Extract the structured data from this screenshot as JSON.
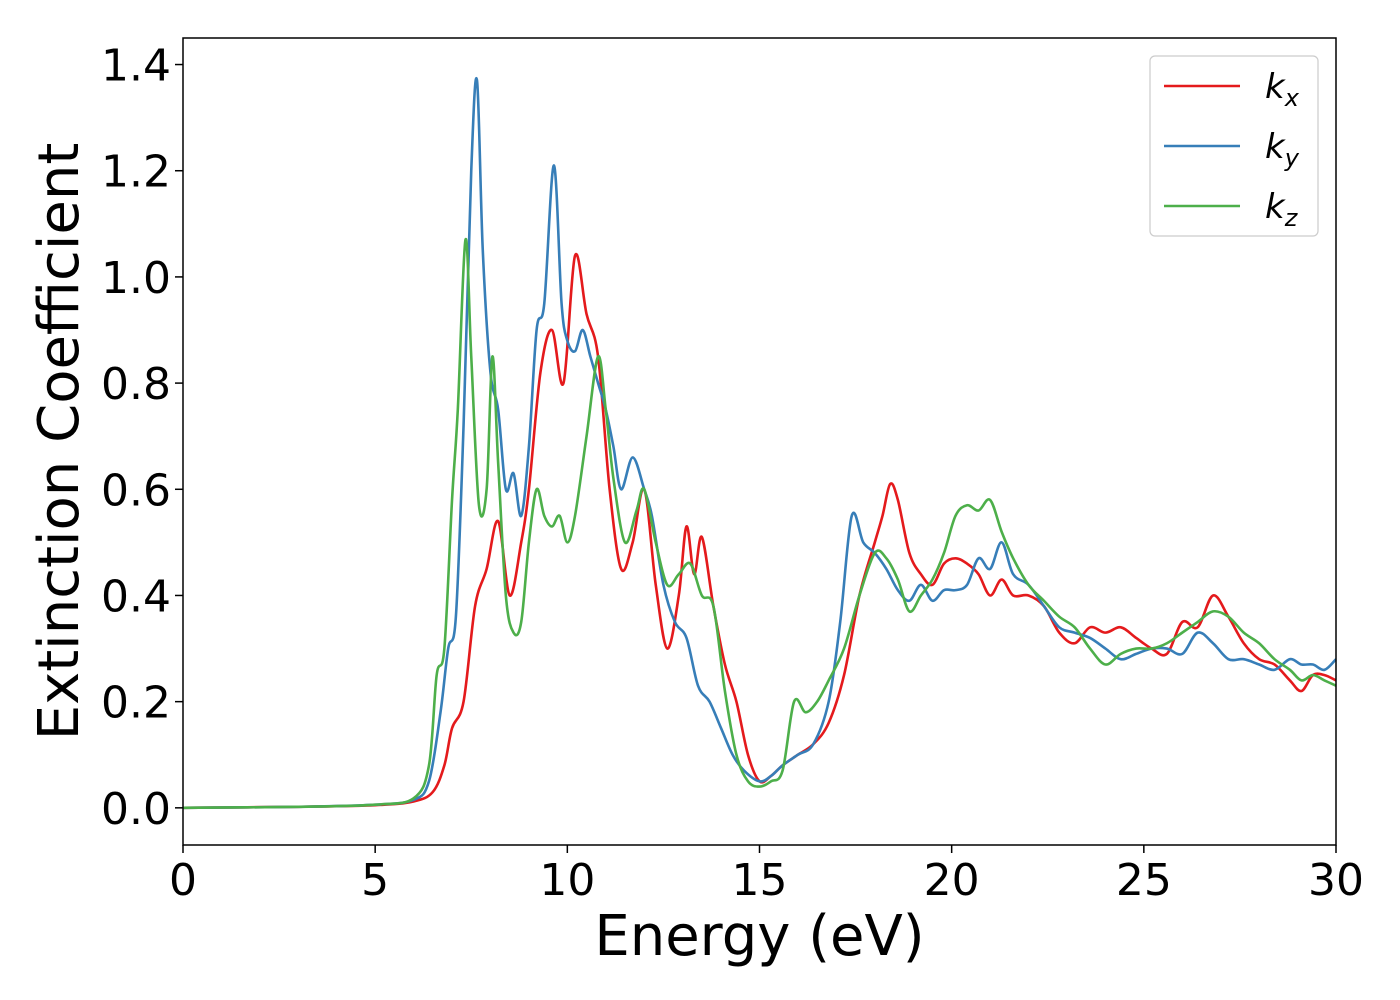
{
  "chart_data": {
    "type": "line",
    "xlabel": "Energy (eV)",
    "ylabel": "Extinction Coefficient",
    "xlim": [
      0,
      30
    ],
    "ylim": [
      -0.07,
      1.45
    ],
    "xticks": [
      0,
      5,
      10,
      15,
      20,
      25,
      30
    ],
    "xtick_labels": [
      "0",
      "5",
      "10",
      "15",
      "20",
      "25",
      "30"
    ],
    "yticks": [
      0.0,
      0.2,
      0.4,
      0.6,
      0.8,
      1.0,
      1.2,
      1.4
    ],
    "ytick_labels": [
      "0.0",
      "0.2",
      "0.4",
      "0.6",
      "0.8",
      "1.0",
      "1.2",
      "1.4"
    ],
    "grid": false,
    "legend_position": "top-right",
    "series": [
      {
        "name": "kx",
        "label_base": "k",
        "label_sub": "x",
        "color": "#e41a1c",
        "x": [
          0,
          3,
          5,
          6,
          6.5,
          6.8,
          7.0,
          7.3,
          7.6,
          7.9,
          8.2,
          8.5,
          8.8,
          9.0,
          9.3,
          9.6,
          9.9,
          10.2,
          10.5,
          10.8,
          11.1,
          11.4,
          11.7,
          12.0,
          12.3,
          12.6,
          12.9,
          13.1,
          13.3,
          13.5,
          13.8,
          14.1,
          14.4,
          14.7,
          15.0,
          15.3,
          15.6,
          16.0,
          16.4,
          16.8,
          17.2,
          17.6,
          18.0,
          18.2,
          18.4,
          18.6,
          18.9,
          19.2,
          19.5,
          19.8,
          20.1,
          20.4,
          20.7,
          21.0,
          21.3,
          21.6,
          22.0,
          22.4,
          22.8,
          23.2,
          23.6,
          24.0,
          24.4,
          24.8,
          25.2,
          25.6,
          26.0,
          26.4,
          26.8,
          27.2,
          27.6,
          28.0,
          28.4,
          28.8,
          29.1,
          29.4,
          29.7,
          30.0
        ],
        "y": [
          0,
          0.002,
          0.005,
          0.012,
          0.03,
          0.08,
          0.15,
          0.2,
          0.38,
          0.45,
          0.54,
          0.4,
          0.5,
          0.6,
          0.82,
          0.9,
          0.8,
          1.04,
          0.93,
          0.85,
          0.6,
          0.45,
          0.5,
          0.6,
          0.42,
          0.3,
          0.4,
          0.53,
          0.44,
          0.51,
          0.38,
          0.27,
          0.2,
          0.1,
          0.05,
          0.06,
          0.08,
          0.1,
          0.12,
          0.16,
          0.25,
          0.4,
          0.5,
          0.55,
          0.61,
          0.58,
          0.48,
          0.44,
          0.42,
          0.46,
          0.47,
          0.46,
          0.44,
          0.4,
          0.43,
          0.4,
          0.4,
          0.38,
          0.33,
          0.31,
          0.34,
          0.33,
          0.34,
          0.32,
          0.3,
          0.29,
          0.35,
          0.34,
          0.4,
          0.36,
          0.31,
          0.28,
          0.27,
          0.24,
          0.22,
          0.25,
          0.25,
          0.24
        ]
      },
      {
        "name": "ky",
        "label_base": "k",
        "label_sub": "y",
        "color": "#377eb8",
        "x": [
          0,
          3,
          5,
          6,
          6.4,
          6.7,
          6.9,
          7.1,
          7.3,
          7.5,
          7.65,
          7.8,
          8.0,
          8.2,
          8.4,
          8.6,
          8.8,
          9.0,
          9.2,
          9.4,
          9.65,
          9.85,
          10.0,
          10.2,
          10.4,
          10.6,
          10.8,
          11.0,
          11.2,
          11.4,
          11.7,
          12.0,
          12.2,
          12.5,
          12.8,
          13.1,
          13.4,
          13.7,
          14.0,
          14.3,
          14.6,
          15.0,
          15.3,
          15.6,
          16.0,
          16.4,
          16.8,
          17.1,
          17.4,
          17.7,
          18.0,
          18.3,
          18.6,
          18.9,
          19.2,
          19.5,
          19.8,
          20.1,
          20.4,
          20.7,
          21.0,
          21.3,
          21.6,
          22.0,
          22.4,
          22.8,
          23.2,
          23.6,
          24.0,
          24.4,
          24.8,
          25.2,
          25.6,
          26.0,
          26.4,
          26.8,
          27.2,
          27.6,
          28.0,
          28.4,
          28.8,
          29.1,
          29.4,
          29.7,
          30.0
        ],
        "y": [
          0,
          0.002,
          0.006,
          0.015,
          0.05,
          0.18,
          0.3,
          0.36,
          0.72,
          1.2,
          1.37,
          1.05,
          0.82,
          0.75,
          0.6,
          0.63,
          0.55,
          0.68,
          0.9,
          0.95,
          1.21,
          0.95,
          0.88,
          0.86,
          0.9,
          0.85,
          0.8,
          0.75,
          0.68,
          0.6,
          0.66,
          0.6,
          0.55,
          0.42,
          0.35,
          0.32,
          0.23,
          0.2,
          0.15,
          0.1,
          0.07,
          0.05,
          0.06,
          0.08,
          0.1,
          0.12,
          0.2,
          0.35,
          0.55,
          0.5,
          0.48,
          0.45,
          0.41,
          0.39,
          0.42,
          0.39,
          0.41,
          0.41,
          0.42,
          0.47,
          0.45,
          0.5,
          0.44,
          0.42,
          0.38,
          0.34,
          0.33,
          0.32,
          0.3,
          0.28,
          0.29,
          0.3,
          0.3,
          0.29,
          0.33,
          0.31,
          0.28,
          0.28,
          0.27,
          0.26,
          0.28,
          0.27,
          0.27,
          0.26,
          0.28
        ]
      },
      {
        "name": "kz",
        "label_base": "k",
        "label_sub": "z",
        "color": "#4daf4a",
        "x": [
          0,
          3,
          5,
          6,
          6.4,
          6.6,
          6.8,
          7.0,
          7.15,
          7.35,
          7.5,
          7.7,
          7.9,
          8.05,
          8.2,
          8.4,
          8.6,
          8.8,
          9.0,
          9.2,
          9.4,
          9.6,
          9.8,
          10.0,
          10.2,
          10.5,
          10.8,
          11.0,
          11.2,
          11.5,
          11.8,
          12.0,
          12.3,
          12.6,
          12.9,
          13.2,
          13.5,
          13.8,
          14.1,
          14.4,
          14.7,
          15.0,
          15.3,
          15.6,
          15.9,
          16.2,
          16.5,
          16.8,
          17.2,
          17.6,
          18.0,
          18.3,
          18.6,
          18.9,
          19.2,
          19.5,
          19.8,
          20.1,
          20.4,
          20.7,
          21.0,
          21.3,
          21.6,
          22.0,
          22.4,
          22.8,
          23.2,
          23.6,
          24.0,
          24.4,
          24.8,
          25.2,
          25.6,
          26.0,
          26.4,
          26.8,
          27.2,
          27.6,
          28.0,
          28.4,
          28.8,
          29.1,
          29.4,
          29.7,
          30.0
        ],
        "y": [
          0,
          0.002,
          0.006,
          0.018,
          0.08,
          0.25,
          0.3,
          0.58,
          0.75,
          1.07,
          0.85,
          0.57,
          0.6,
          0.85,
          0.65,
          0.4,
          0.33,
          0.35,
          0.5,
          0.6,
          0.55,
          0.53,
          0.55,
          0.5,
          0.55,
          0.7,
          0.85,
          0.75,
          0.62,
          0.5,
          0.56,
          0.6,
          0.5,
          0.42,
          0.44,
          0.46,
          0.4,
          0.38,
          0.22,
          0.1,
          0.05,
          0.04,
          0.05,
          0.07,
          0.2,
          0.18,
          0.2,
          0.24,
          0.3,
          0.4,
          0.48,
          0.47,
          0.43,
          0.37,
          0.4,
          0.43,
          0.48,
          0.55,
          0.57,
          0.56,
          0.58,
          0.52,
          0.47,
          0.42,
          0.39,
          0.36,
          0.34,
          0.3,
          0.27,
          0.29,
          0.3,
          0.3,
          0.31,
          0.33,
          0.35,
          0.37,
          0.36,
          0.33,
          0.31,
          0.28,
          0.26,
          0.24,
          0.25,
          0.24,
          0.23
        ]
      }
    ]
  }
}
